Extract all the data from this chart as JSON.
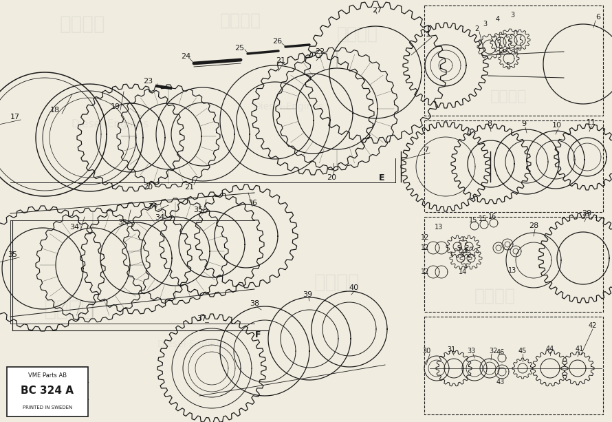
{
  "bg_color": "#f0ece0",
  "line_color": "#1a1a1a",
  "fig_width": 8.9,
  "fig_height": 6.13,
  "title_box": {
    "text1": "VME Parts AB",
    "text2": "BC 324 A",
    "text3": "PRINTED IN SWEDEN"
  }
}
